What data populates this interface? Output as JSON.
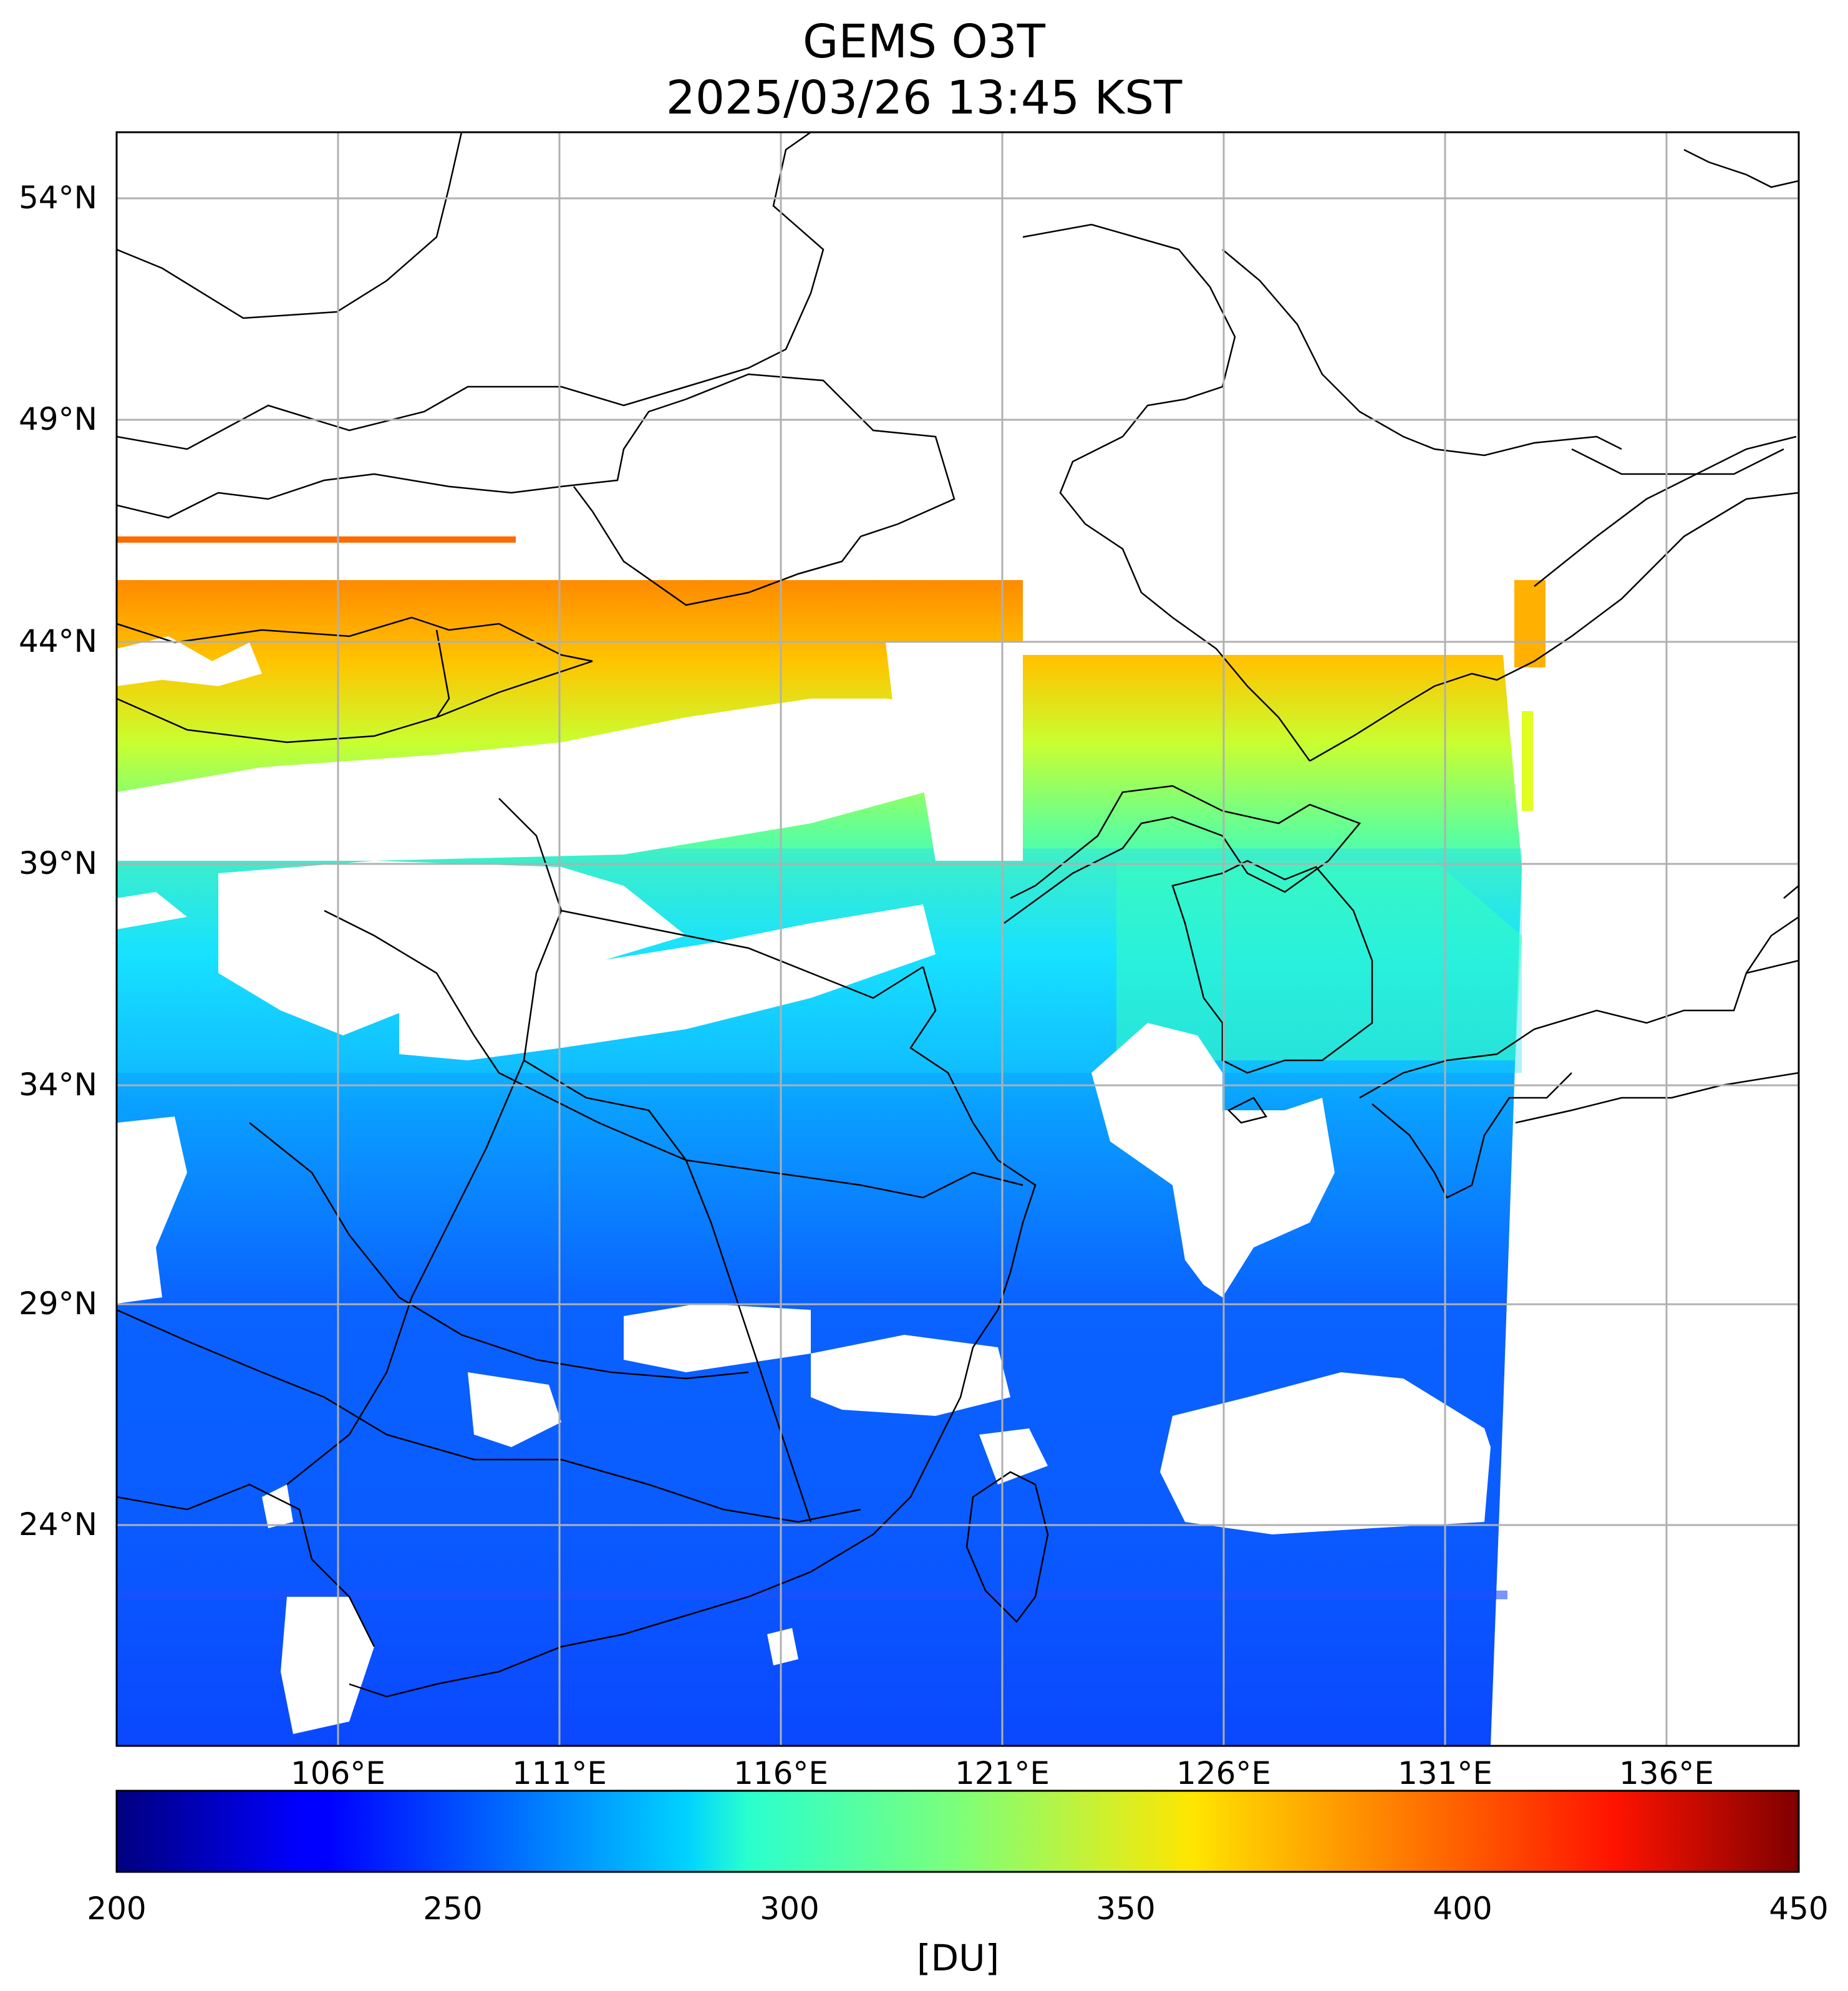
{
  "title": {
    "line1": "GEMS O3T",
    "line2": "2025/03/26 13:45 KST"
  },
  "map": {
    "lat_labels": [
      "54°N",
      "49°N",
      "44°N",
      "39°N",
      "34°N",
      "29°N",
      "24°N"
    ],
    "lon_labels": [
      "106°E",
      "111°E",
      "116°E",
      "121°E",
      "126°E",
      "131°E",
      "136°E"
    ],
    "lat_values": [
      54,
      49,
      44,
      39,
      34,
      29,
      24
    ],
    "lon_values": [
      106,
      111,
      116,
      121,
      126,
      131,
      136
    ],
    "lon_range": [
      101,
      139
    ],
    "lat_range": [
      19.5,
      56
    ],
    "gridlines": true,
    "no_data_color": "#ffffff"
  },
  "colorbar": {
    "colormap": "jet",
    "range": [
      200,
      450
    ],
    "tick_labels": [
      "200",
      "250",
      "300",
      "350",
      "400",
      "450"
    ],
    "tick_values": [
      200,
      250,
      300,
      350,
      400,
      450
    ],
    "unit": "[DU]"
  }
}
